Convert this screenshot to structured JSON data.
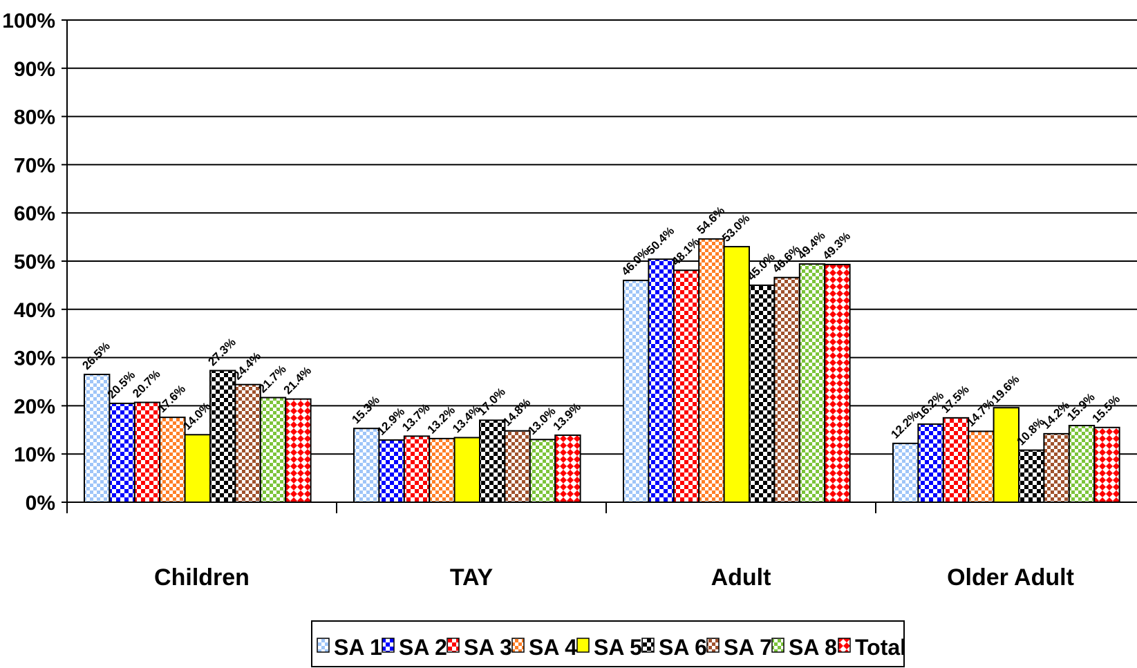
{
  "chart_data": {
    "type": "bar",
    "title": "",
    "xlabel": "",
    "ylabel": "",
    "categories": [
      "Children",
      "TAY",
      "Adult",
      "Older Adult"
    ],
    "ylim": [
      0,
      100
    ],
    "yticks": [
      "0%",
      "10%",
      "20%",
      "30%",
      "40%",
      "50%",
      "60%",
      "70%",
      "80%",
      "90%",
      "100%"
    ],
    "grid": true,
    "legend_position": "bottom",
    "series": [
      {
        "name": "SA 1",
        "values": [
          26.5,
          15.3,
          46.0,
          12.2
        ],
        "labels": [
          "26.5%",
          "15.3%",
          "46.0%",
          "12.2%"
        ],
        "color": "#9fc5f8",
        "pattern": "check-fine"
      },
      {
        "name": "SA 2",
        "values": [
          20.5,
          12.9,
          50.4,
          16.2
        ],
        "labels": [
          "20.5%",
          "12.9%",
          "50.4%",
          "16.2%"
        ],
        "color": "#0000ff",
        "pattern": "check"
      },
      {
        "name": "SA 3",
        "values": [
          20.7,
          13.7,
          48.1,
          17.5
        ],
        "labels": [
          "20.7%",
          "13.7%",
          "48.1%",
          "17.5%"
        ],
        "color": "#ff0000",
        "pattern": "check"
      },
      {
        "name": "SA 4",
        "values": [
          17.6,
          13.2,
          54.6,
          14.7
        ],
        "labels": [
          "17.6%",
          "13.2%",
          "54.6%",
          "14.7%"
        ],
        "color": "#ff7f27",
        "pattern": "check-fine"
      },
      {
        "name": "SA 5",
        "values": [
          14.0,
          13.4,
          53.0,
          19.6
        ],
        "labels": [
          "14.0%",
          "13.4%",
          "53.0%",
          "19.6%"
        ],
        "color": "#ffff00",
        "pattern": "solid"
      },
      {
        "name": "SA 6",
        "values": [
          27.3,
          17.0,
          45.0,
          10.8
        ],
        "labels": [
          "27.3%",
          "17.0%",
          "45.0%",
          "10.8%"
        ],
        "color": "#000000",
        "pattern": "check"
      },
      {
        "name": "SA 7",
        "values": [
          24.4,
          14.8,
          46.6,
          14.2
        ],
        "labels": [
          "24.4%",
          "14.8%",
          "46.6%",
          "14.2%"
        ],
        "color": "#a0522d",
        "pattern": "check-fine"
      },
      {
        "name": "SA 8",
        "values": [
          21.7,
          13.0,
          49.4,
          15.9
        ],
        "labels": [
          "21.7%",
          "13.0%",
          "49.4%",
          "15.9%"
        ],
        "color": "#7cc43a",
        "pattern": "check-fine"
      },
      {
        "name": "Total",
        "values": [
          21.4,
          13.9,
          49.3,
          15.5
        ],
        "labels": [
          "21.4%",
          "13.9%",
          "49.3%",
          "15.5%"
        ],
        "color": "#ff0000",
        "pattern": "diamond"
      }
    ]
  }
}
